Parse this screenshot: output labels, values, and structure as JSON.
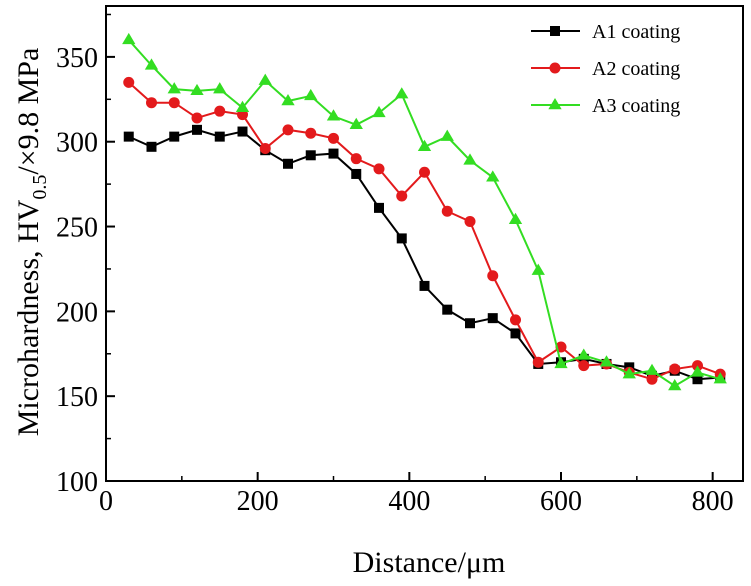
{
  "chart_data": {
    "type": "line",
    "title": "",
    "xlabel": "Distance/μm",
    "ylabel": {
      "prefix": "Microhardness, HV",
      "subscript": "0.5",
      "suffix": "/×9.8 MPa"
    },
    "xlim": [
      0,
      840
    ],
    "ylim": [
      100,
      380
    ],
    "xticks": [
      0,
      200,
      400,
      600,
      800
    ],
    "yticks": [
      100,
      150,
      200,
      250,
      300,
      350
    ],
    "grid": false,
    "legend_position": "top-right",
    "series": [
      {
        "name": "A1 coating",
        "color": "#000000",
        "marker": "square",
        "x": [
          30,
          60,
          90,
          120,
          150,
          180,
          210,
          240,
          270,
          300,
          330,
          360,
          390,
          420,
          450,
          480,
          510,
          540,
          570,
          600,
          630,
          660,
          690,
          720,
          750,
          780,
          810
        ],
        "y": [
          303,
          297,
          303,
          307,
          303,
          306,
          295,
          287,
          292,
          293,
          281,
          261,
          243,
          215,
          201,
          193,
          196,
          187,
          169,
          170,
          172,
          169,
          167,
          162,
          165,
          160,
          161
        ]
      },
      {
        "name": "A2 coating",
        "color": "#e31a1c",
        "marker": "circle",
        "x": [
          30,
          60,
          90,
          120,
          150,
          180,
          210,
          240,
          270,
          300,
          330,
          360,
          390,
          420,
          450,
          480,
          510,
          540,
          570,
          600,
          630,
          660,
          690,
          720,
          750,
          780,
          810
        ],
        "y": [
          335,
          323,
          323,
          314,
          318,
          316,
          296,
          307,
          305,
          302,
          290,
          284,
          268,
          282,
          259,
          253,
          221,
          195,
          170,
          179,
          168,
          169,
          164,
          160,
          166,
          168,
          163
        ]
      },
      {
        "name": "A3 coating",
        "color": "#33dd22",
        "marker": "triangle",
        "x": [
          30,
          60,
          90,
          120,
          150,
          180,
          210,
          240,
          270,
          300,
          330,
          360,
          390,
          420,
          450,
          480,
          510,
          540,
          570,
          600,
          630,
          660,
          690,
          720,
          750,
          780,
          810
        ],
        "y": [
          360,
          345,
          331,
          330,
          331,
          320,
          336,
          324,
          327,
          315,
          310,
          317,
          328,
          297,
          303,
          289,
          279,
          254,
          224,
          169,
          174,
          170,
          163,
          165,
          156,
          164,
          160
        ]
      }
    ]
  }
}
